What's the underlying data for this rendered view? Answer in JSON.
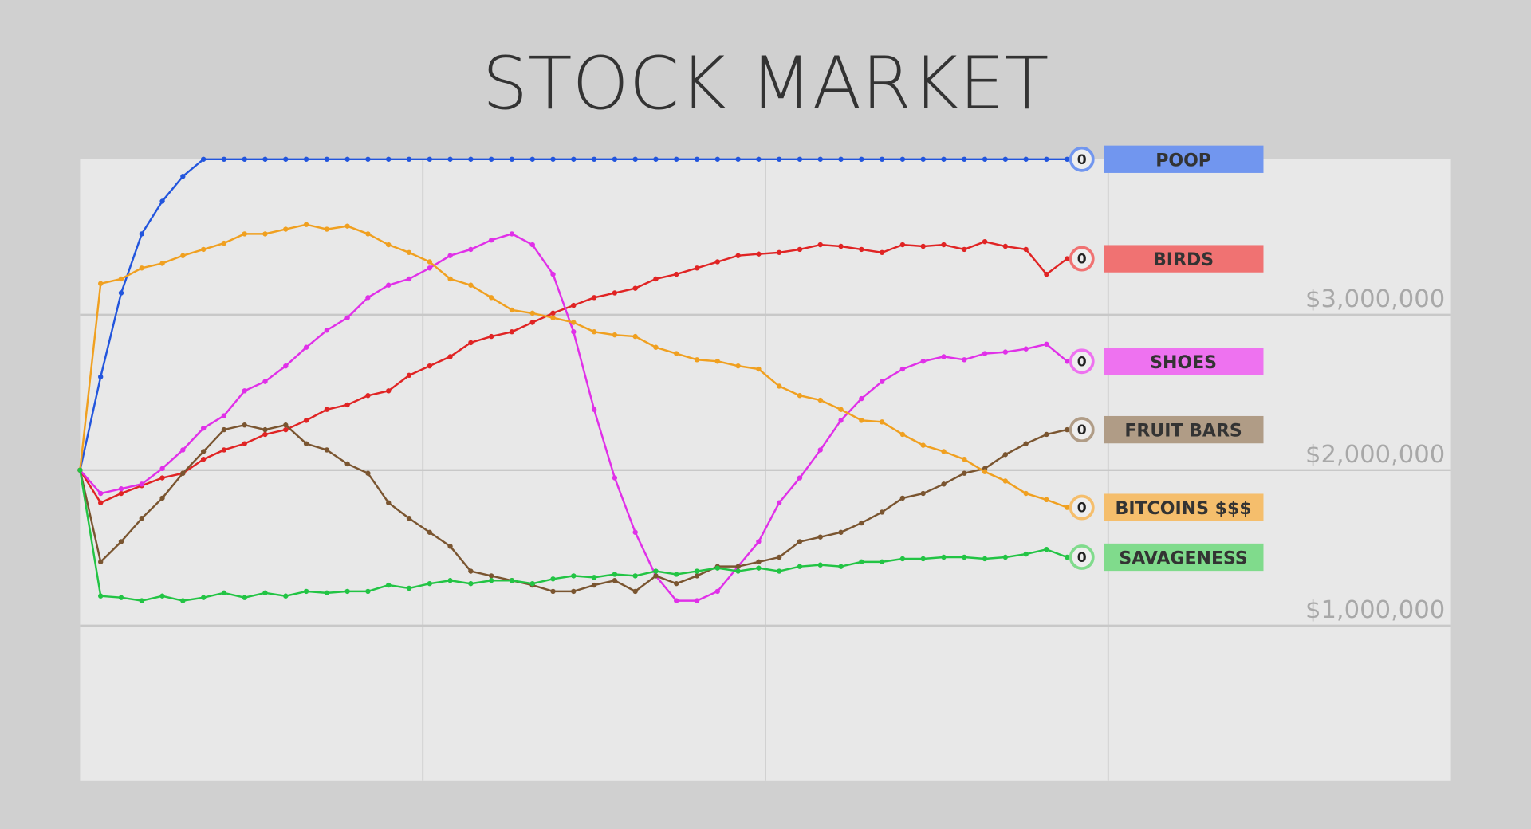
{
  "chart_data": {
    "type": "line",
    "title": "STOCK MARKET",
    "x": [
      0,
      6,
      12,
      18,
      24,
      30,
      36,
      42,
      48,
      54,
      60,
      66,
      72,
      78,
      84,
      90,
      96,
      102,
      108,
      114,
      120,
      126,
      132,
      138,
      144,
      150,
      156,
      162,
      168,
      174,
      180,
      186,
      192,
      198,
      204,
      210,
      216,
      222,
      228,
      234,
      240,
      246,
      252,
      258,
      264,
      270,
      276,
      282,
      288
    ],
    "xlim": [
      0,
      400
    ],
    "ylim": [
      0,
      4000000
    ],
    "yticks": [
      {
        "value": 1000000,
        "label": "$1,000,000"
      },
      {
        "value": 2000000,
        "label": "$2,000,000"
      },
      {
        "value": 3000000,
        "label": "$3,000,000"
      }
    ],
    "grid": true,
    "series": [
      {
        "name": "POOP",
        "color": "#2255dd",
        "label_color": "#7196ef",
        "score": 0,
        "values": [
          2000000,
          2600000,
          3140000,
          3520000,
          3730000,
          3890000,
          4000000,
          4000000,
          4000000,
          4000000,
          4000000,
          4000000,
          4000000,
          4000000,
          4000000,
          4000000,
          4000000,
          4000000,
          4000000,
          4000000,
          4000000,
          4000000,
          4000000,
          4000000,
          4000000,
          4000000,
          4000000,
          4000000,
          4000000,
          4000000,
          4000000,
          4000000,
          4000000,
          4000000,
          4000000,
          4000000,
          4000000,
          4000000,
          4000000,
          4000000,
          4000000,
          4000000,
          4000000,
          4000000,
          4000000,
          4000000,
          4000000,
          4000000,
          4000000
        ]
      },
      {
        "name": "BIRDS",
        "color": "#e02424",
        "label_color": "#f07272",
        "score": 0,
        "values": [
          2000000,
          1790000,
          1850000,
          1900000,
          1950000,
          1980000,
          2070000,
          2130000,
          2170000,
          2230000,
          2260000,
          2320000,
          2390000,
          2420000,
          2480000,
          2510000,
          2610000,
          2670000,
          2730000,
          2820000,
          2860000,
          2890000,
          2950000,
          3010000,
          3060000,
          3110000,
          3140000,
          3170000,
          3230000,
          3260000,
          3300000,
          3340000,
          3380000,
          3390000,
          3400000,
          3420000,
          3450000,
          3440000,
          3420000,
          3400000,
          3450000,
          3440000,
          3450000,
          3420000,
          3470000,
          3440000,
          3420000,
          3260000,
          3360000
        ]
      },
      {
        "name": "SHOES",
        "color": "#e030e8",
        "label_color": "#ee72f0",
        "score": 0,
        "values": [
          2000000,
          1850000,
          1880000,
          1910000,
          2010000,
          2130000,
          2270000,
          2350000,
          2510000,
          2570000,
          2670000,
          2790000,
          2900000,
          2980000,
          3110000,
          3190000,
          3230000,
          3300000,
          3380000,
          3420000,
          3480000,
          3520000,
          3450000,
          3260000,
          2890000,
          2390000,
          1950000,
          1600000,
          1320000,
          1160000,
          1160000,
          1220000,
          1380000,
          1540000,
          1790000,
          1950000,
          2130000,
          2320000,
          2460000,
          2570000,
          2650000,
          2700000,
          2730000,
          2710000,
          2750000,
          2760000,
          2780000,
          2810000,
          2700000
        ]
      },
      {
        "name": "FRUIT BARS",
        "color": "#7a5530",
        "label_color": "#b09c86",
        "score": 0,
        "values": [
          2000000,
          1410000,
          1540000,
          1690000,
          1820000,
          1980000,
          2120000,
          2260000,
          2290000,
          2260000,
          2290000,
          2170000,
          2130000,
          2040000,
          1980000,
          1790000,
          1690000,
          1600000,
          1510000,
          1350000,
          1320000,
          1290000,
          1260000,
          1220000,
          1220000,
          1260000,
          1290000,
          1220000,
          1320000,
          1270000,
          1320000,
          1380000,
          1380000,
          1410000,
          1440000,
          1540000,
          1570000,
          1600000,
          1660000,
          1730000,
          1820000,
          1850000,
          1910000,
          1980000,
          2010000,
          2100000,
          2170000,
          2230000,
          2260000
        ]
      },
      {
        "name": "BITCOINS $$$",
        "color": "#f0a020",
        "label_color": "#f5be6c",
        "score": 0,
        "values": [
          2000000,
          3200000,
          3230000,
          3300000,
          3330000,
          3380000,
          3420000,
          3460000,
          3520000,
          3520000,
          3550000,
          3580000,
          3550000,
          3570000,
          3520000,
          3450000,
          3400000,
          3340000,
          3230000,
          3190000,
          3110000,
          3030000,
          3010000,
          2980000,
          2950000,
          2890000,
          2870000,
          2860000,
          2790000,
          2750000,
          2710000,
          2700000,
          2670000,
          2650000,
          2540000,
          2480000,
          2450000,
          2390000,
          2320000,
          2310000,
          2230000,
          2160000,
          2120000,
          2070000,
          1990000,
          1930000,
          1850000,
          1810000,
          1760000
        ]
      },
      {
        "name": "SAVAGENESS",
        "color": "#22c444",
        "label_color": "#80db8c",
        "score": 0,
        "values": [
          2000000,
          1190000,
          1180000,
          1160000,
          1190000,
          1160000,
          1180000,
          1210000,
          1180000,
          1210000,
          1190000,
          1220000,
          1210000,
          1220000,
          1220000,
          1260000,
          1240000,
          1270000,
          1290000,
          1270000,
          1290000,
          1290000,
          1270000,
          1300000,
          1320000,
          1310000,
          1330000,
          1320000,
          1350000,
          1330000,
          1350000,
          1370000,
          1350000,
          1370000,
          1350000,
          1380000,
          1390000,
          1380000,
          1410000,
          1410000,
          1430000,
          1430000,
          1440000,
          1440000,
          1430000,
          1440000,
          1460000,
          1490000,
          1440000
        ]
      }
    ]
  }
}
